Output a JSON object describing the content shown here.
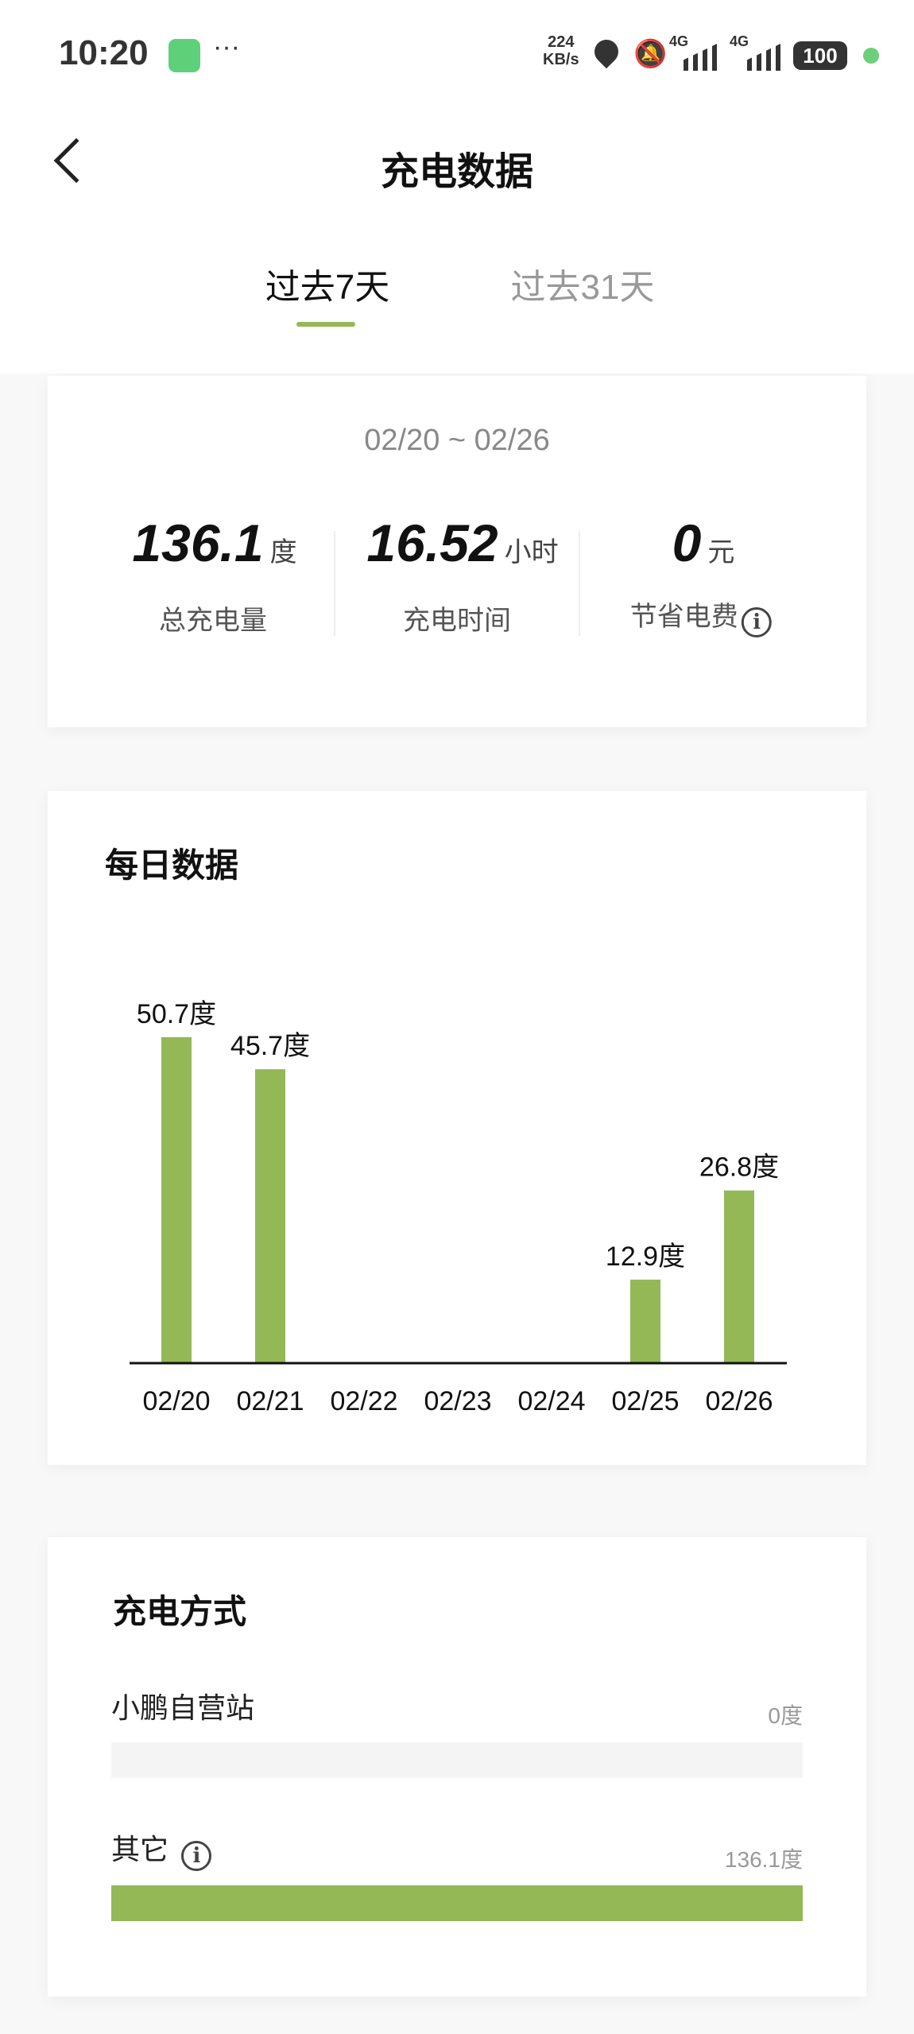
{
  "status_bar": {
    "time": "10:20",
    "more": "···",
    "speed_value": "224",
    "speed_unit": "KB/s",
    "net1": "4G",
    "net2": "4G",
    "battery": "100"
  },
  "nav": {
    "title": "充电数据",
    "back_icon": "chevron-left-icon"
  },
  "tabs": [
    {
      "label": "过去7天",
      "active": true
    },
    {
      "label": "过去31天",
      "active": false
    }
  ],
  "summary": {
    "date_range": "02/20 ~ 02/26",
    "stats": [
      {
        "value": "136.1",
        "unit": "度",
        "label": "总充电量"
      },
      {
        "value": "16.52",
        "unit": "小时",
        "label": "充电时间"
      },
      {
        "value": "0",
        "unit": "元",
        "label": "节省电费",
        "info": true
      }
    ]
  },
  "daily": {
    "title": "每日数据"
  },
  "chart_data": {
    "type": "bar",
    "categories": [
      "02/20",
      "02/21",
      "02/22",
      "02/23",
      "02/24",
      "02/25",
      "02/26"
    ],
    "values": [
      50.7,
      45.7,
      0,
      0,
      0,
      12.9,
      26.8
    ],
    "data_labels": [
      "50.7度",
      "45.7度",
      "",
      "",
      "",
      "12.9度",
      "26.8度"
    ],
    "unit": "度",
    "color": "#94b856",
    "grid": false
  },
  "methods": {
    "title": "充电方式",
    "items": [
      {
        "label": "小鹏自营站",
        "value": "0度",
        "fraction": 0,
        "info": false
      },
      {
        "label": "其它",
        "value": "136.1度",
        "fraction": 1,
        "info": true
      }
    ]
  },
  "colors": {
    "accent": "#94b856",
    "track": "#f4f4f4"
  }
}
